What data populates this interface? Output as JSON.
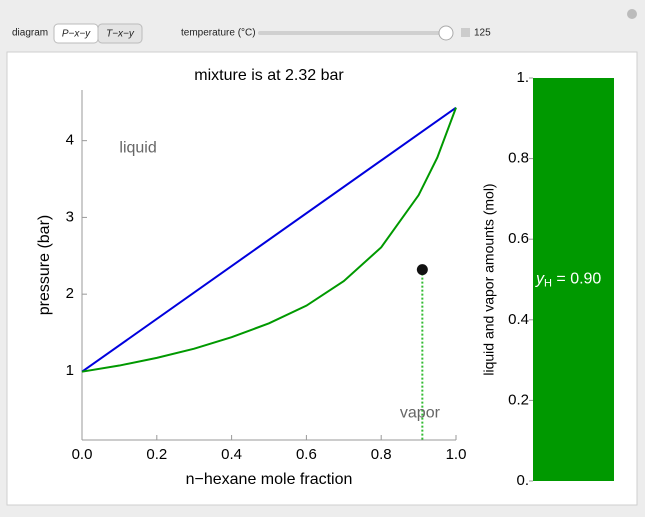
{
  "controls": {
    "diagram_label": "diagram",
    "diagram_options": [
      "P−x−y",
      "T−x−y"
    ],
    "selected": 0,
    "temperature_label": "temperature (°C)",
    "temperature": 125
  },
  "chart_data": [
    {
      "type": "line",
      "title": "mixture is at 2.32 bar",
      "x_label": "n−hexane mole fraction",
      "y_label": "pressure (bar)",
      "xlim": [
        0,
        1
      ],
      "ylim": [
        0.1,
        4.66
      ],
      "xticks": [
        {
          "value": 0,
          "label": "0.0"
        },
        0.2,
        0.4,
        0.6,
        0.8,
        {
          "value": 1,
          "label": "1.0"
        }
      ],
      "yticks": [
        1,
        2,
        3,
        4
      ],
      "series": [
        {
          "color": "#0000dd",
          "x": [
            0,
            1
          ],
          "values": [
            0.99,
            4.43
          ]
        },
        {
          "color": "#009900",
          "x": [
            0,
            0.1,
            0.2,
            0.3,
            0.4,
            0.5,
            0.6,
            0.7,
            0.8,
            0.9,
            0.95,
            1
          ],
          "values": [
            0.99,
            1.07,
            1.17,
            1.29,
            1.44,
            1.62,
            1.85,
            2.17,
            2.61,
            3.29,
            3.78,
            4.43
          ]
        }
      ],
      "marker": {
        "x": 0.91,
        "y": 2.32,
        "color": "#111111",
        "drop_color": "#33bb33"
      },
      "annotations": [
        {
          "text": "liquid",
          "x": 0.1,
          "y": 3.9
        },
        {
          "text": "vapor",
          "x": 0.85,
          "y": 0.45
        }
      ]
    },
    {
      "type": "bar",
      "y_label": "liquid and vapor amounts (mol)",
      "values": [
        1
      ],
      "color": "#009900",
      "ylim": [
        0,
        1
      ],
      "yticks": [
        {
          "value": 0,
          "label": "0."
        },
        0.2,
        0.4,
        0.6,
        0.8,
        {
          "value": 1,
          "label": "1."
        }
      ],
      "annotation": {
        "symbol": "y",
        "subscript": "H",
        "text": " = 0.90",
        "y": 0.5
      }
    }
  ]
}
